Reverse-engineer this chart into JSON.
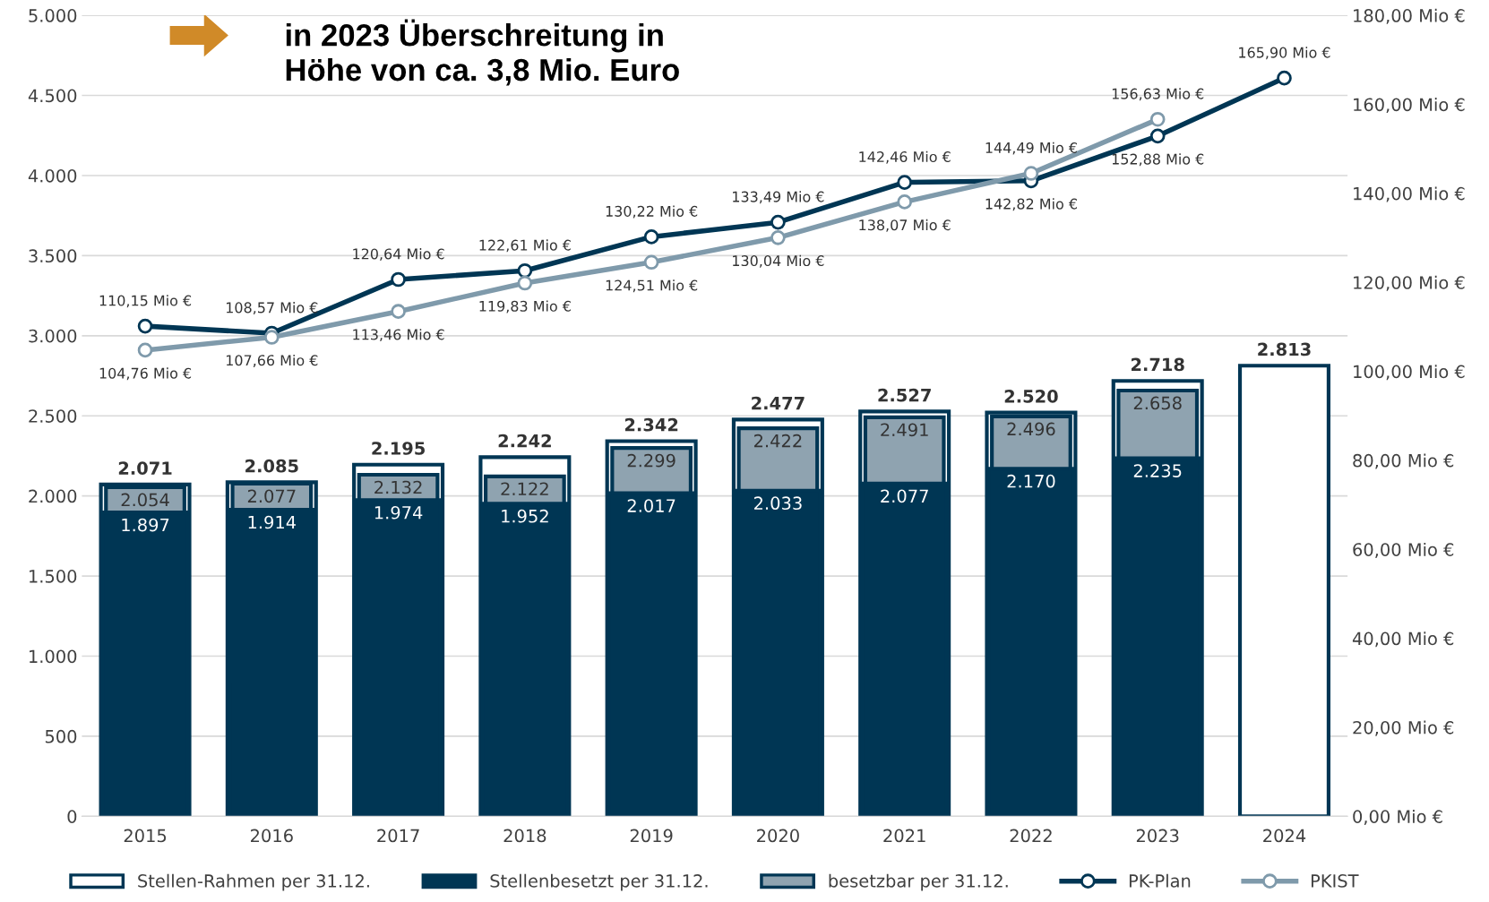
{
  "chart_data": {
    "type": "bar",
    "categories": [
      "2015",
      "2016",
      "2017",
      "2018",
      "2019",
      "2020",
      "2021",
      "2022",
      "2023",
      "2024"
    ],
    "series": [
      {
        "name": "Stellen-Rahmen per 31.12.",
        "color": "#ffffff",
        "values": [
          2071,
          2085,
          2195,
          2242,
          2342,
          2477,
          2527,
          2520,
          2718,
          2813
        ],
        "value_labels": [
          "2.071",
          "2.085",
          "2.195",
          "2.242",
          "2.342",
          "2.477",
          "2.527",
          "2.520",
          "2.718",
          "2.813"
        ]
      },
      {
        "name": "Stellenbesetzt per 31.12.",
        "color": "#003654",
        "values": [
          1897,
          1914,
          1974,
          1952,
          2017,
          2033,
          2077,
          2170,
          2235,
          null
        ],
        "value_labels": [
          "1.897",
          "1.914",
          "1.974",
          "1.952",
          "2.017",
          "2.033",
          "2.077",
          "2.170",
          "2.235",
          null
        ]
      },
      {
        "name": "besetzbar per 31.12.",
        "color": "#8fa3b0",
        "values": [
          2054,
          2077,
          2132,
          2122,
          2299,
          2422,
          2491,
          2496,
          2658,
          null
        ],
        "value_labels": [
          "2.054",
          "2.077",
          "2.132",
          "2.122",
          "2.299",
          "2.422",
          "2.491",
          "2.496",
          "2.658",
          null
        ]
      },
      {
        "name": "PK-Plan",
        "type": "line",
        "axis": "y2",
        "color": "#003654",
        "values": [
          110.15,
          108.57,
          120.64,
          122.61,
          130.22,
          133.49,
          142.46,
          142.82,
          152.88,
          165.9
        ],
        "value_labels": [
          "110,15 Mio €",
          "108,57 Mio €",
          "120,64 Mio €",
          "122,61 Mio €",
          "130,22 Mio €",
          "133,49 Mio €",
          "142,46 Mio €",
          "142,82 Mio €",
          "152,88 Mio €",
          "165,90 Mio €"
        ]
      },
      {
        "name": "PKIST",
        "type": "line",
        "axis": "y2",
        "color": "#7f9aab",
        "values": [
          104.76,
          107.66,
          113.46,
          119.83,
          124.51,
          130.04,
          138.07,
          144.49,
          156.63,
          null
        ],
        "value_labels": [
          "104,76 Mio €",
          "107,66 Mio €",
          "113,46 Mio €",
          "119,83 Mio €",
          "124,51 Mio €",
          "130,04 Mio €",
          "138,07 Mio €",
          "144,49 Mio €",
          "156,63 Mio €",
          null
        ]
      }
    ],
    "ylim": [
      0,
      5000
    ],
    "yticks": [
      0,
      500,
      {
        "value": 1000,
        "label": "1.000"
      },
      {
        "value": 1500,
        "label": "1.500"
      },
      {
        "value": 2000,
        "label": "2.000"
      },
      {
        "value": 2500,
        "label": "2.500"
      },
      {
        "value": 3000,
        "label": "3.000"
      },
      {
        "value": 3500,
        "label": "3.500"
      },
      {
        "value": 4000,
        "label": "4.000"
      },
      {
        "value": 4500,
        "label": "4.500"
      },
      {
        "value": 5000,
        "label": "5.000"
      }
    ],
    "y2lim": [
      0,
      180
    ],
    "y2ticks": [
      {
        "value": 0,
        "label": "0,00 Mio €"
      },
      {
        "value": 20,
        "label": "20,00 Mio €"
      },
      {
        "value": 40,
        "label": "40,00 Mio €"
      },
      {
        "value": 60,
        "label": "60,00 Mio €"
      },
      {
        "value": 80,
        "label": "80,00 Mio €"
      },
      {
        "value": 100,
        "label": "100,00 Mio €"
      },
      {
        "value": 120,
        "label": "120,00 Mio €"
      },
      {
        "value": 140,
        "label": "140,00 Mio €"
      },
      {
        "value": 160,
        "label": "160,00 Mio €"
      },
      {
        "value": 180,
        "label": "180,00 Mio €"
      }
    ],
    "annotations": [
      "in 2023 Überschreitung in\nHöhe von ca. 3,8 Mio. Euro"
    ],
    "grid": "y",
    "legend": "bottom",
    "marker": "circle",
    "line_style": "solid"
  }
}
